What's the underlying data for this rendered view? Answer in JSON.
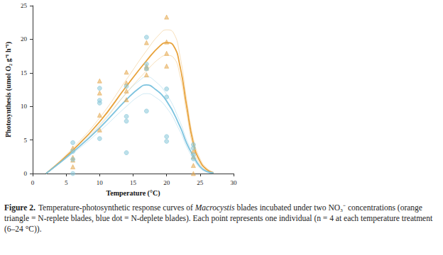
{
  "chart_data": {
    "type": "scatter",
    "x_label": "Temperature (°C)",
    "y_label": "Photosynthesis (umol O₂ g⁻¹ h⁻¹)",
    "xlim": [
      0,
      30
    ],
    "xticks": [
      0,
      5,
      10,
      15,
      20,
      25,
      30
    ],
    "ylim": [
      0,
      25
    ],
    "yticks": [
      0,
      5,
      10,
      15,
      20,
      25
    ],
    "grid": false,
    "series": [
      {
        "type": "scatter",
        "marker": "triangle",
        "color": "#e3a64a",
        "x": [
          6,
          6,
          6,
          6,
          10,
          10,
          10,
          10,
          14,
          14,
          14,
          14,
          17,
          17,
          17,
          17,
          20,
          20,
          20,
          20,
          24,
          24,
          24,
          24
        ],
        "values": [
          3.8,
          2.4,
          2.0,
          1.0,
          13.8,
          12.0,
          8.7,
          6.5,
          15.1,
          13.5,
          12.3,
          11.0,
          19.5,
          16.0,
          15.7,
          14.7,
          23.3,
          19.6,
          17.9,
          16.0,
          3.3,
          2.5,
          1.2,
          0.0
        ]
      },
      {
        "type": "scatter",
        "marker": "circle",
        "color": "#86c6d8",
        "x": [
          6,
          6,
          6,
          6,
          10,
          10,
          10,
          10,
          14,
          14,
          14,
          14,
          17,
          17,
          17,
          17,
          20,
          20,
          20,
          20,
          24,
          24,
          24,
          24
        ],
        "values": [
          4.6,
          3.3,
          2.1,
          0.0,
          12.7,
          10.9,
          10.5,
          5.2,
          13.0,
          8.5,
          7.8,
          3.1,
          20.3,
          16.3,
          15.6,
          9.3,
          12.6,
          11.4,
          5.5,
          4.8,
          4.3,
          3.8,
          2.8,
          2.2
        ]
      },
      {
        "type": "line",
        "line_style": "solid",
        "color": "#e8a23a",
        "x": [
          2,
          6,
          10,
          14,
          17,
          19,
          20,
          21,
          22,
          23,
          24,
          25,
          26,
          27
        ],
        "values": [
          0.0,
          3.5,
          7.7,
          13.0,
          16.8,
          19.0,
          19.5,
          19.1,
          16.0,
          10.0,
          4.5,
          1.8,
          0.6,
          0.1
        ],
        "lower": [
          0.0,
          3.2,
          7.1,
          12.0,
          15.3,
          17.2,
          17.6,
          17.3,
          14.6,
          9.0,
          3.8,
          1.4,
          0.4,
          0.0
        ],
        "upper": [
          0.0,
          3.8,
          8.3,
          14.0,
          18.3,
          20.8,
          21.4,
          21.0,
          17.5,
          11.0,
          5.2,
          2.2,
          0.8,
          0.2
        ]
      },
      {
        "type": "line",
        "line_style": "solid",
        "color": "#7cc3df",
        "x": [
          2,
          6,
          10,
          14,
          16,
          17,
          18,
          20,
          22,
          23,
          24,
          25,
          26,
          27
        ],
        "values": [
          0.0,
          3.2,
          6.8,
          11.0,
          12.8,
          13.2,
          12.8,
          10.8,
          7.0,
          4.5,
          2.6,
          1.0,
          0.3,
          0.1
        ],
        "lower": [
          0.0,
          3.0,
          6.3,
          10.0,
          11.6,
          11.9,
          11.6,
          9.8,
          6.3,
          4.0,
          2.2,
          0.8,
          0.2,
          0.0
        ],
        "upper": [
          0.0,
          3.4,
          7.3,
          12.0,
          13.9,
          14.4,
          14.0,
          11.8,
          7.7,
          5.0,
          3.0,
          1.2,
          0.4,
          0.2
        ]
      }
    ]
  },
  "caption": {
    "label": "Figure 2.",
    "text_before": "Temperature-photosynthetic response curves of ",
    "italic": "Macrocystis",
    "text_after": " blades incubated under two NO₃⁻ concentrations (orange triangle = N-replete blades, blue dot = N-deplete blades). Each point represents one individual (n = 4 at each temperature treatment (6–24 °C))."
  }
}
